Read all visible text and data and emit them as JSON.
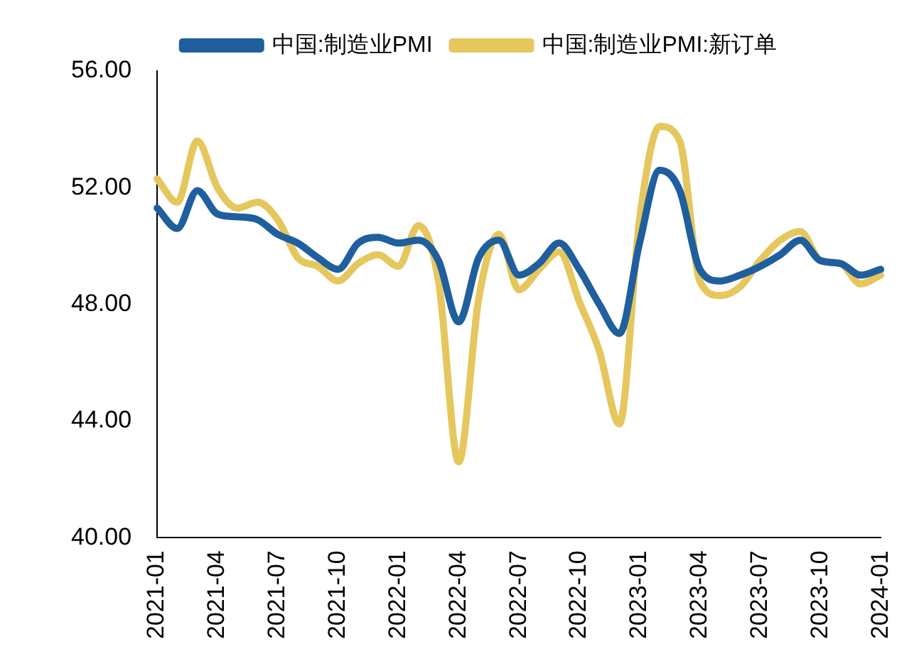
{
  "chart_data": {
    "type": "line",
    "categories": [
      "2021-01",
      null,
      null,
      "2021-04",
      null,
      null,
      "2021-07",
      null,
      null,
      "2021-10",
      null,
      null,
      "2022-01",
      null,
      null,
      "2022-04",
      null,
      null,
      "2022-07",
      null,
      null,
      "2022-10",
      null,
      null,
      "2023-01",
      null,
      null,
      "2023-04",
      null,
      null,
      "2023-07",
      null,
      null,
      "2023-10",
      null,
      null,
      "2024-01"
    ],
    "series": [
      {
        "name": "中国:制造业PMI",
        "color": "#1f5f9e",
        "values": [
          51.3,
          50.6,
          51.9,
          51.1,
          51.0,
          50.9,
          50.4,
          50.1,
          49.6,
          49.2,
          50.1,
          50.3,
          50.1,
          50.2,
          49.5,
          47.4,
          49.6,
          50.2,
          49.0,
          49.4,
          50.1,
          49.2,
          48.0,
          47.0,
          50.1,
          52.6,
          51.9,
          49.2,
          48.8,
          49.0,
          49.3,
          49.7,
          50.2,
          49.5,
          49.4,
          49.0,
          49.2
        ]
      },
      {
        "name": "中国:制造业PMI:新订单",
        "color": "#e5c75e",
        "values": [
          52.3,
          51.5,
          53.6,
          52.0,
          51.3,
          51.5,
          50.9,
          49.6,
          49.3,
          48.8,
          49.4,
          49.7,
          49.3,
          50.7,
          48.8,
          42.6,
          48.2,
          50.4,
          48.5,
          49.2,
          49.8,
          48.1,
          46.4,
          43.9,
          50.9,
          54.1,
          53.6,
          48.8,
          48.3,
          48.6,
          49.5,
          50.2,
          50.5,
          49.5,
          49.4,
          48.7,
          49.0
        ]
      }
    ],
    "ylim": [
      40,
      56
    ],
    "yticks": [
      {
        "value": 40,
        "label": "40.00"
      },
      {
        "value": 44,
        "label": "44.00"
      },
      {
        "value": 48,
        "label": "48.00"
      },
      {
        "value": 52,
        "label": "52.00"
      },
      {
        "value": 56,
        "label": "56.00"
      }
    ],
    "grid": false,
    "legend": "top",
    "marker": "none",
    "line_style": "solid"
  }
}
